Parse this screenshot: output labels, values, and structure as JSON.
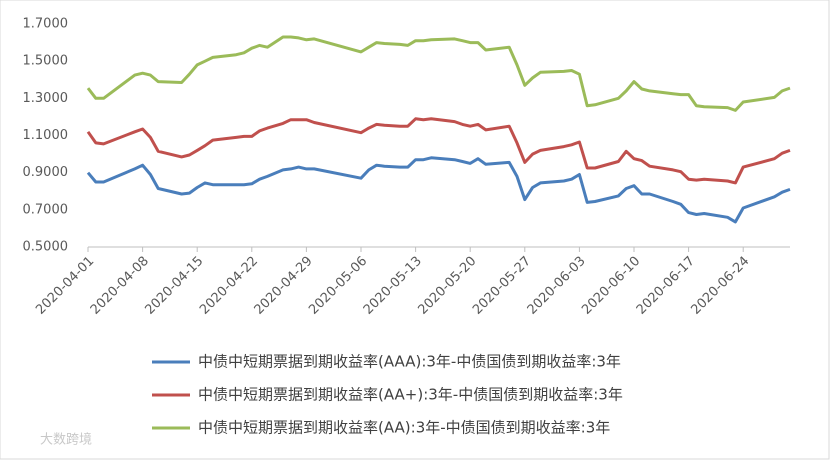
{
  "chart_data": {
    "type": "line",
    "watermark": "大数跨境",
    "x": [
      "2020-04-01",
      "2020-04-02",
      "2020-04-03",
      "2020-04-07",
      "2020-04-08",
      "2020-04-09",
      "2020-04-10",
      "2020-04-13",
      "2020-04-14",
      "2020-04-15",
      "2020-04-16",
      "2020-04-17",
      "2020-04-20",
      "2020-04-21",
      "2020-04-22",
      "2020-04-23",
      "2020-04-24",
      "2020-04-26",
      "2020-04-27",
      "2020-04-28",
      "2020-04-29",
      "2020-04-30",
      "2020-05-06",
      "2020-05-07",
      "2020-05-08",
      "2020-05-09",
      "2020-05-11",
      "2020-05-12",
      "2020-05-13",
      "2020-05-14",
      "2020-05-15",
      "2020-05-18",
      "2020-05-19",
      "2020-05-20",
      "2020-05-21",
      "2020-05-22",
      "2020-05-25",
      "2020-05-26",
      "2020-05-27",
      "2020-05-28",
      "2020-05-29",
      "2020-06-01",
      "2020-06-02",
      "2020-06-03",
      "2020-06-04",
      "2020-06-05",
      "2020-06-08",
      "2020-06-09",
      "2020-06-10",
      "2020-06-11",
      "2020-06-12",
      "2020-06-15",
      "2020-06-16",
      "2020-06-17",
      "2020-06-18",
      "2020-06-19",
      "2020-06-22",
      "2020-06-23",
      "2020-06-24",
      "2020-06-28",
      "2020-06-29",
      "2020-06-30"
    ],
    "series": [
      {
        "name": "中债中短期票据到期收益率(AAA):3年-中债国债到期收益率:3年",
        "color": "#4a7ebb",
        "values": [
          0.9,
          0.85,
          0.85,
          0.92,
          0.94,
          0.89,
          0.815,
          0.785,
          0.79,
          0.82,
          0.845,
          0.835,
          0.835,
          0.835,
          0.84,
          0.865,
          0.88,
          0.915,
          0.92,
          0.93,
          0.92,
          0.92,
          0.87,
          0.915,
          0.94,
          0.935,
          0.93,
          0.93,
          0.97,
          0.97,
          0.98,
          0.97,
          0.96,
          0.95,
          0.975,
          0.945,
          0.955,
          0.88,
          0.755,
          0.82,
          0.845,
          0.855,
          0.865,
          0.89,
          0.74,
          0.745,
          0.775,
          0.815,
          0.83,
          0.785,
          0.785,
          0.745,
          0.73,
          0.685,
          0.675,
          0.68,
          0.66,
          0.635,
          0.71,
          0.77,
          0.795,
          0.81
        ]
      },
      {
        "name": "中债中短期票据到期收益率(AA+):3年-中债国债到期收益率:3年",
        "color": "#c0504d",
        "values": [
          1.12,
          1.06,
          1.055,
          1.12,
          1.135,
          1.09,
          1.015,
          0.985,
          0.995,
          1.02,
          1.045,
          1.075,
          1.09,
          1.095,
          1.095,
          1.125,
          1.14,
          1.165,
          1.185,
          1.185,
          1.185,
          1.17,
          1.115,
          1.14,
          1.16,
          1.155,
          1.15,
          1.15,
          1.19,
          1.185,
          1.19,
          1.175,
          1.16,
          1.15,
          1.16,
          1.13,
          1.15,
          1.06,
          0.955,
          1.0,
          1.02,
          1.04,
          1.05,
          1.065,
          0.925,
          0.925,
          0.96,
          1.015,
          0.975,
          0.965,
          0.935,
          0.915,
          0.905,
          0.865,
          0.86,
          0.865,
          0.855,
          0.845,
          0.93,
          0.975,
          1.005,
          1.02
        ]
      },
      {
        "name": "中债中短期票据到期收益率(AA):3年-中债国债到期收益率:3年",
        "color": "#9bbb59",
        "values": [
          1.355,
          1.3,
          1.3,
          1.425,
          1.435,
          1.425,
          1.39,
          1.385,
          1.43,
          1.48,
          1.5,
          1.52,
          1.535,
          1.545,
          1.57,
          1.585,
          1.575,
          1.63,
          1.63,
          1.625,
          1.615,
          1.62,
          1.55,
          1.575,
          1.6,
          1.595,
          1.59,
          1.585,
          1.61,
          1.61,
          1.615,
          1.62,
          1.61,
          1.6,
          1.6,
          1.56,
          1.575,
          1.48,
          1.37,
          1.41,
          1.44,
          1.445,
          1.45,
          1.43,
          1.26,
          1.265,
          1.3,
          1.34,
          1.39,
          1.35,
          1.34,
          1.325,
          1.32,
          1.32,
          1.26,
          1.255,
          1.25,
          1.235,
          1.28,
          1.305,
          1.34,
          1.355
        ]
      }
    ],
    "xlim": [
      "2020-04-01",
      "2020-06-30"
    ],
    "xticks": [
      "2020-04-01",
      "2020-04-08",
      "2020-04-15",
      "2020-04-22",
      "2020-04-29",
      "2020-05-06",
      "2020-05-13",
      "2020-05-20",
      "2020-05-27",
      "2020-06-03",
      "2020-06-10",
      "2020-06-17",
      "2020-06-24"
    ],
    "ylim": [
      0.5,
      1.7
    ],
    "yticks": [
      {
        "value": 0.5,
        "label": "0.5000"
      },
      {
        "value": 0.7,
        "label": "0.7000"
      },
      {
        "value": 0.9,
        "label": "0.9000"
      },
      {
        "value": 1.1,
        "label": "1.1000"
      },
      {
        "value": 1.3,
        "label": "1.3000"
      },
      {
        "value": 1.5,
        "label": "1.5000"
      },
      {
        "value": 1.7,
        "label": "1.7000"
      }
    ],
    "grid": false,
    "legend": "bottom"
  }
}
